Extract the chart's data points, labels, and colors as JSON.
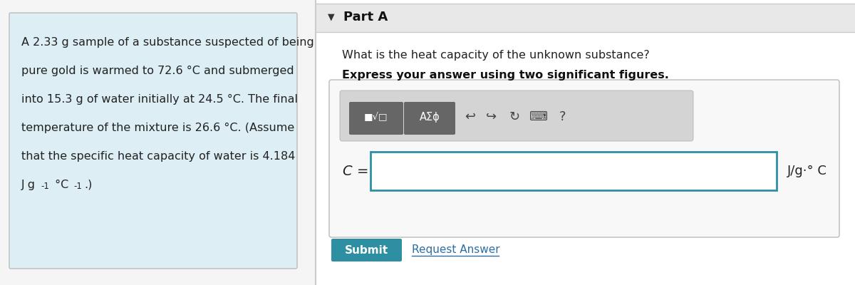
{
  "bg_color": "#f5f5f5",
  "left_panel_bg": "#ddeef5",
  "right_panel_bg": "#ffffff",
  "left_text_lines": [
    "A 2.33 g sample of a substance suspected of being",
    "pure gold is warmed to 72.6 °C and submerged",
    "into 15.3 g of water initially at 24.5 °C. The final",
    "temperature of the mixture is 26.6 °C. (Assume",
    "that the specific heat capacity of water is 4.184"
  ],
  "left_last_line_normal": "J g",
  "left_last_line_super": "-1",
  "left_last_line_mid": " °C",
  "left_last_line_super2": "-1",
  "left_last_line_end": ".)",
  "part_a_label": "Part A",
  "question_text": "What is the heat capacity of the unknown substance?",
  "bold_text": "Express your answer using two significant figures.",
  "unit_text": "J/g·° C",
  "submit_text": "Submit",
  "request_text": "Request Answer",
  "submit_bg": "#2e8fa3",
  "submit_text_color": "#ffffff",
  "input_border_color": "#2e8fa3",
  "divider_color": "#cccccc",
  "toolbar_bg": "#d4d4d4",
  "btn_bg": "#666666",
  "header_bg": "#e8e8e8"
}
